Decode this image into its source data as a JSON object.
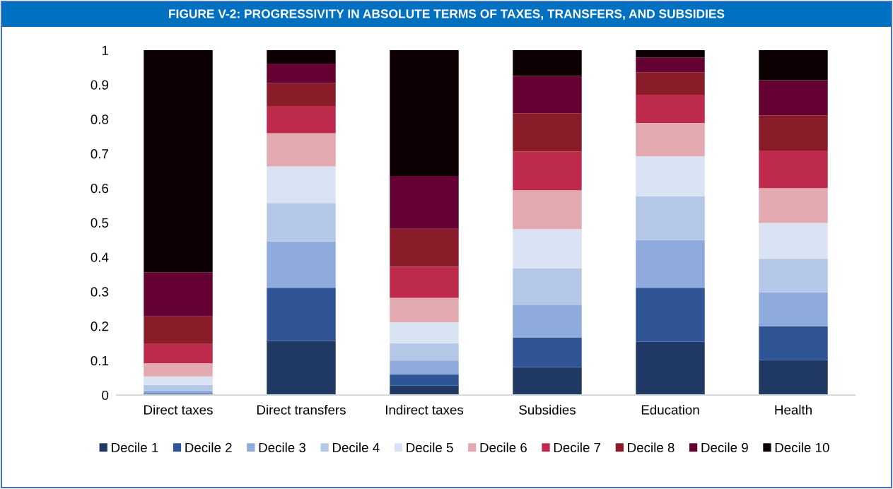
{
  "chart_data": {
    "type": "bar",
    "stacked": true,
    "title": "FIGURE V-2: PROGRESSIVITY IN ABSOLUTE TERMS OF TAXES, TRANSFERS, AND SUBSIDIES",
    "categories": [
      "Direct taxes",
      "Direct transfers",
      "Indirect taxes",
      "Subsidies",
      "Education",
      "Health"
    ],
    "series": [
      {
        "name": "Decile 1",
        "color": "#203864",
        "values": [
          0.002,
          0.157,
          0.027,
          0.081,
          0.154,
          0.101
        ]
      },
      {
        "name": "Decile 2",
        "color": "#2f5597",
        "values": [
          0.003,
          0.154,
          0.033,
          0.086,
          0.157,
          0.099
        ]
      },
      {
        "name": "Decile 3",
        "color": "#8faadc",
        "values": [
          0.008,
          0.134,
          0.04,
          0.095,
          0.139,
          0.098
        ]
      },
      {
        "name": "Decile 4",
        "color": "#b4c7e7",
        "values": [
          0.016,
          0.112,
          0.05,
          0.106,
          0.127,
          0.097
        ]
      },
      {
        "name": "Decile 5",
        "color": "#dae3f3",
        "values": [
          0.025,
          0.106,
          0.061,
          0.113,
          0.115,
          0.104
        ]
      },
      {
        "name": "Decile 6",
        "color": "#e2aab0",
        "values": [
          0.038,
          0.096,
          0.071,
          0.113,
          0.097,
          0.101
        ]
      },
      {
        "name": "Decile 7",
        "color": "#be2a4c",
        "values": [
          0.056,
          0.079,
          0.09,
          0.112,
          0.082,
          0.109
        ]
      },
      {
        "name": "Decile 8",
        "color": "#8a1c2a",
        "values": [
          0.08,
          0.067,
          0.11,
          0.111,
          0.065,
          0.102
        ]
      },
      {
        "name": "Decile 9",
        "color": "#650033",
        "values": [
          0.128,
          0.056,
          0.153,
          0.108,
          0.043,
          0.102
        ]
      },
      {
        "name": "Decile 10",
        "color": "#0c0002",
        "values": [
          0.644,
          0.039,
          0.365,
          0.075,
          0.021,
          0.087
        ]
      }
    ],
    "ylim": [
      0,
      1
    ],
    "yticks": [
      0,
      0.1,
      0.2,
      0.3,
      0.4,
      0.5,
      0.6,
      0.7,
      0.8,
      0.9,
      1
    ],
    "grid": false,
    "legend": "bottom"
  }
}
